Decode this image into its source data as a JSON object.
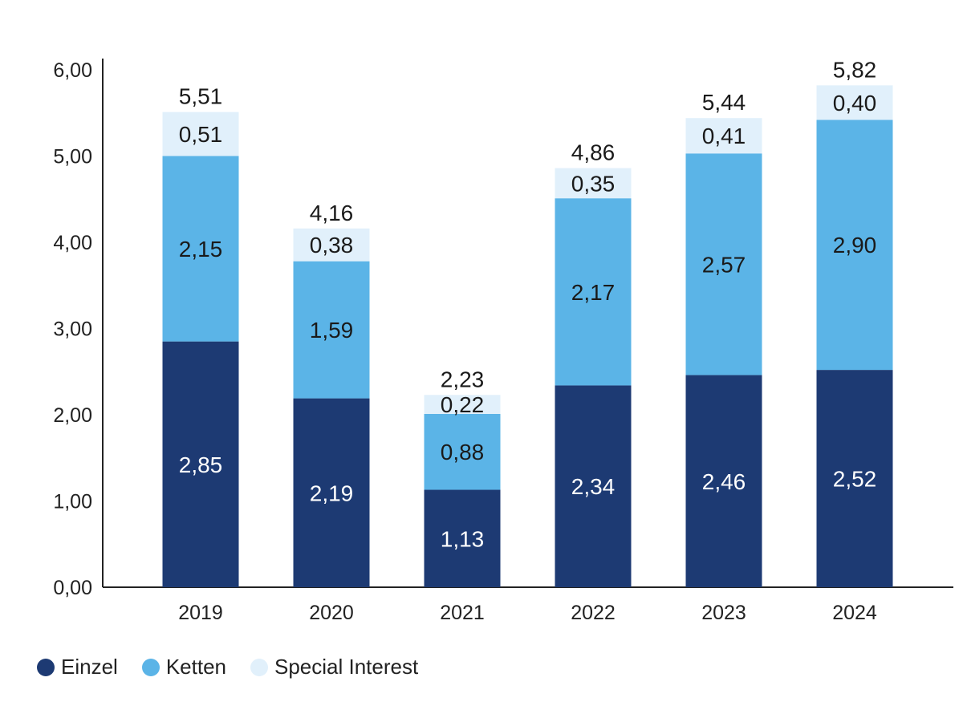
{
  "chart_data": {
    "type": "bar",
    "stacked": true,
    "categories": [
      "2019",
      "2020",
      "2021",
      "2022",
      "2023",
      "2024"
    ],
    "series": [
      {
        "name": "Einzel",
        "color": "#1d3a73",
        "label_color": "#ffffff",
        "values": [
          2.85,
          2.19,
          1.13,
          2.34,
          2.46,
          2.52
        ],
        "labels": [
          "2,85",
          "2,19",
          "1,13",
          "2,34",
          "2,46",
          "2,52"
        ]
      },
      {
        "name": "Ketten",
        "color": "#5bb4e7",
        "label_color": "#1a1a1a",
        "values": [
          2.15,
          1.59,
          0.88,
          2.17,
          2.57,
          2.9
        ],
        "labels": [
          "2,15",
          "1,59",
          "0,88",
          "2,17",
          "2,57",
          "2,90"
        ]
      },
      {
        "name": "Special Interest",
        "color": "#e1f0fb",
        "label_color": "#1a1a1a",
        "values": [
          0.51,
          0.38,
          0.22,
          0.35,
          0.41,
          0.4
        ],
        "labels": [
          "0,51",
          "0,38",
          "0,22",
          "0,35",
          "0,41",
          "0,40"
        ]
      }
    ],
    "totals": [
      5.51,
      4.16,
      2.23,
      4.86,
      5.44,
      5.82
    ],
    "total_labels": [
      "5,51",
      "4,16",
      "2,23",
      "4,86",
      "5,44",
      "5,82"
    ],
    "y_ticks": [
      "0,00",
      "1,00",
      "2,00",
      "3,00",
      "4,00",
      "5,00",
      "6,00"
    ],
    "ylim": [
      0,
      6
    ],
    "grid": false,
    "legend_position": "bottom-left"
  }
}
